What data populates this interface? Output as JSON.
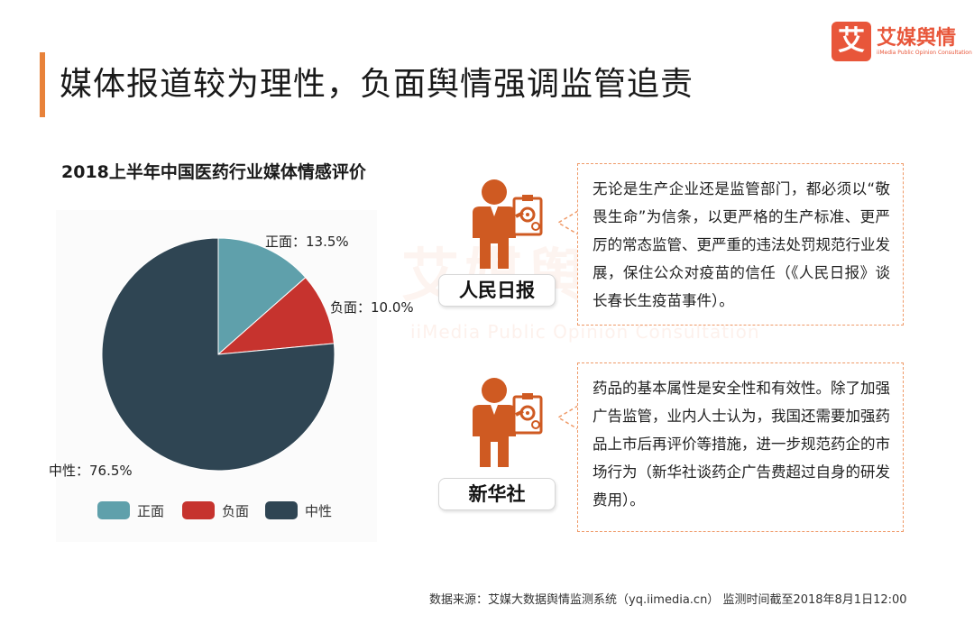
{
  "page": {
    "title": "媒体报道较为理性，负面舆情强调监管追责"
  },
  "logo": {
    "mark": "艾",
    "name": "艾媒舆情",
    "sub": "iiMedia Public Opinion Consultation"
  },
  "watermark": {
    "text": "艾媒舆情",
    "sub": "iiMedia Public Opinion Consultation"
  },
  "chart_data": {
    "type": "pie",
    "title": "2018上半年中国医药行业媒体情感评价",
    "categories": [
      "正面",
      "负面",
      "中性"
    ],
    "values": [
      13.5,
      10.0,
      76.5
    ],
    "unit": "%",
    "colors": [
      "#5fa0ab",
      "#c6332e",
      "#2f4553"
    ],
    "data_labels": [
      "正面：13.5%",
      "负面：10.0%",
      "中性：76.5%"
    ],
    "legend": {
      "position": "bottom",
      "items": [
        "正面",
        "负面",
        "中性"
      ]
    }
  },
  "sources": [
    {
      "label": "人民日报",
      "quote": "无论是生产企业还是监管部门，都必须以“敬畏生命”为信条，以更严格的生产标准、更严厉的常态监管、更严重的违法处罚规范行业发展，保住公众对疫苗的信任（《人民日报》谈长春长生疫苗事件）。"
    },
    {
      "label": "新华社",
      "quote": "药品的基本属性是安全性和有效性。除了加强广告监管，业内人士认为，我国还需要加强药品上市后再评价等措施，进一步规范药企的市场行为（新华社谈药企广告费超过自身的研发费用）。"
    }
  ],
  "footer": "数据来源：艾媒大数据舆情监测系统（yq.iimedia.cn）   监测时间截至2018年8月1日12:00"
}
